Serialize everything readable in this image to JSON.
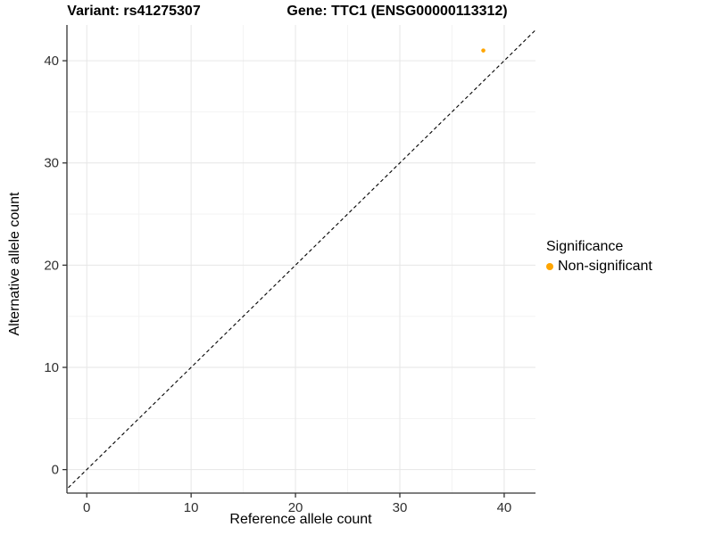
{
  "chart_data": {
    "type": "scatter",
    "title_left": "Variant: rs41275307",
    "title_right": "Gene: TTC1 (ENSG00000113312)",
    "xlabel": "Reference allele count",
    "ylabel": "Alternative allele count",
    "xlim": [
      -1.9,
      43.0
    ],
    "ylim": [
      -2.3,
      43.5
    ],
    "x_ticks": [
      0,
      10,
      20,
      30,
      40
    ],
    "y_ticks": [
      0,
      10,
      20,
      30,
      40
    ],
    "x_minor_ticks": [
      5,
      15,
      25,
      35
    ],
    "y_minor_ticks": [
      5,
      15,
      25,
      35
    ],
    "grid": true,
    "series": [
      {
        "name": "Non-significant",
        "color": "#FFA500",
        "points": [
          {
            "x": 38,
            "y": 41
          }
        ]
      }
    ],
    "reference_line": {
      "type": "identity",
      "slope": 1,
      "intercept": 0,
      "style": "dashed",
      "color": "#000000"
    },
    "legend": {
      "title": "Significance",
      "position": "right",
      "items": [
        {
          "label": "Non-significant",
          "color": "#FFA500"
        }
      ]
    },
    "colors": {
      "grid_major": "#E6E6E6",
      "grid_minor": "#F3F3F3",
      "axis_line": "#333333",
      "tick_mark": "#333333",
      "tick_label": "#303030"
    }
  }
}
